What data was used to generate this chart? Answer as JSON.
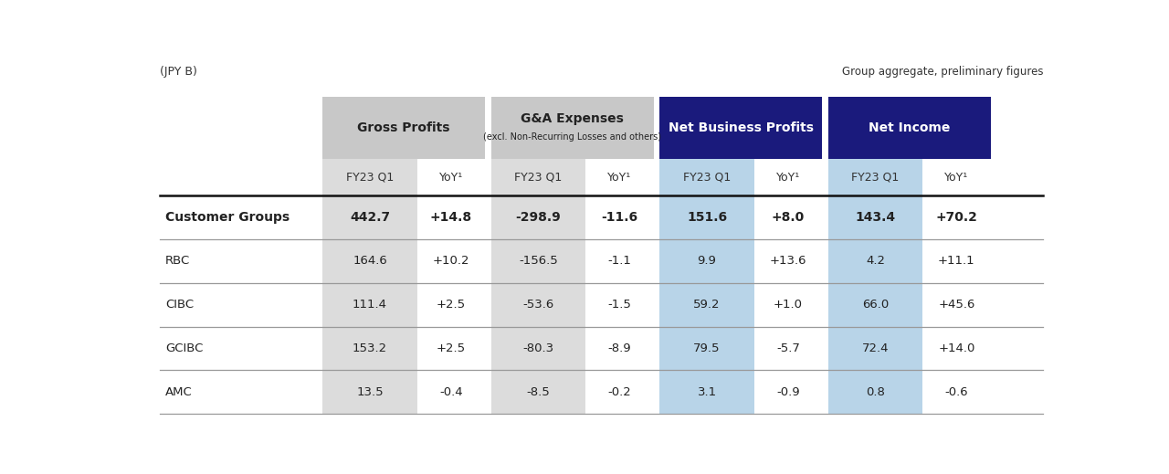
{
  "title_left": "(JPY B)",
  "title_right": "Group aggregate, preliminary figures",
  "group_labels": [
    "Gross Profits",
    "G&A Expenses",
    "Net Business Profits",
    "Net Income"
  ],
  "group_subtitles": [
    "",
    "(excl. Non-Recurring Losses and others)",
    "",
    ""
  ],
  "subheader_labels": [
    "FY23 Q1",
    "YoY¹",
    "FY23 Q1",
    "YoY¹",
    "FY23 Q1",
    "YoY¹",
    "FY23 Q1",
    "YoY¹"
  ],
  "rows": [
    {
      "label": "Customer Groups",
      "bold": true,
      "values": [
        "442.7",
        "+14.8",
        "-298.9",
        "-11.6",
        "151.6",
        "+8.0",
        "143.4",
        "+70.2"
      ]
    },
    {
      "label": "RBC",
      "bold": false,
      "values": [
        "164.6",
        "+10.2",
        "-156.5",
        "-1.1",
        "9.9",
        "+13.6",
        "4.2",
        "+11.1"
      ]
    },
    {
      "label": "CIBC",
      "bold": false,
      "values": [
        "111.4",
        "+2.5",
        "-53.6",
        "-1.5",
        "59.2",
        "+1.0",
        "66.0",
        "+45.6"
      ]
    },
    {
      "label": "GCIBC",
      "bold": false,
      "values": [
        "153.2",
        "+2.5",
        "-80.3",
        "-8.9",
        "79.5",
        "-5.7",
        "72.4",
        "+14.0"
      ]
    },
    {
      "label": "AMC",
      "bold": false,
      "values": [
        "13.5",
        "-0.4",
        "-8.5",
        "-0.2",
        "3.1",
        "-0.9",
        "0.8",
        "-0.6"
      ]
    }
  ],
  "gross_header_bg": "#c8c8c8",
  "ga_header_bg": "#c8c8c8",
  "net_biz_header_bg": "#1a1a7c",
  "net_inc_header_bg": "#1a1a7c",
  "gross_col1_bg": "#dcdcdc",
  "gross_col2_bg": "#ffffff",
  "ga_col1_bg": "#dcdcdc",
  "ga_col2_bg": "#ffffff",
  "net_biz_col1_bg": "#b8d4e8",
  "net_biz_col2_bg": "#ffffff",
  "net_inc_col1_bg": "#b8d4e8",
  "net_inc_col2_bg": "#ffffff",
  "subheader_bg": "#ffffff",
  "figure_bg": "#ffffff",
  "text_dark": "#222222",
  "text_white": "#ffffff"
}
